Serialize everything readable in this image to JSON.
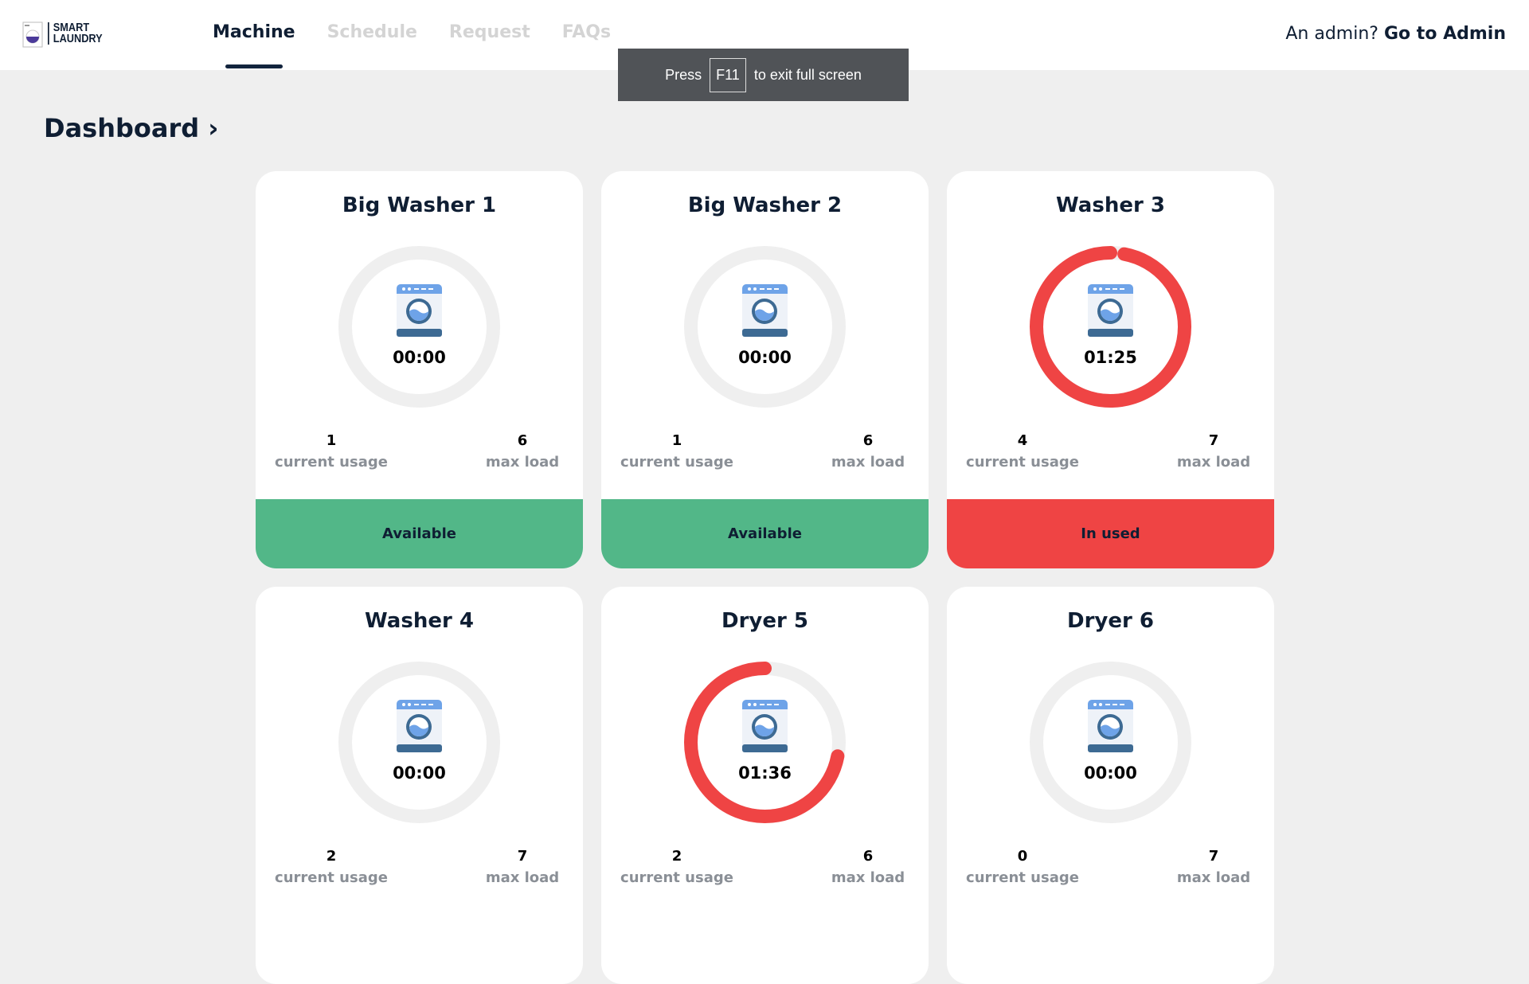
{
  "header": {
    "logo_text": [
      "SMART",
      "LAUNDRY"
    ],
    "nav": [
      "Machine",
      "Schedule",
      "Request",
      "FAQs"
    ],
    "active": "Machine",
    "admin_prompt": "An admin?",
    "admin_link": "Go to Admin"
  },
  "toast": {
    "pre": "Press",
    "key": "F11",
    "post": "to exit full screen"
  },
  "page_title": "Dashboard ›",
  "colors": {
    "available": "#52b788",
    "in_use": "#ef4444",
    "ring_bg": "#efefef"
  },
  "machines": [
    {
      "name": "Big Washer 1",
      "time": "00:00",
      "progress": 0,
      "usage": "1",
      "usage_label": "current usage",
      "max": "6",
      "max_label": "max load",
      "status": "Available",
      "state": "available"
    },
    {
      "name": "Big Washer 2",
      "time": "00:00",
      "progress": 0,
      "usage": "1",
      "usage_label": "current usage",
      "max": "6",
      "max_label": "max load",
      "status": "Available",
      "state": "available"
    },
    {
      "name": "Washer 3",
      "time": "01:25",
      "progress": 0.97,
      "usage": "4",
      "usage_label": "current usage",
      "max": "7",
      "max_label": "max load",
      "status": "In used",
      "state": "in_use"
    },
    {
      "name": "Washer 4",
      "time": "00:00",
      "progress": 0,
      "usage": "2",
      "usage_label": "current usage",
      "max": "7",
      "max_label": "max load"
    },
    {
      "name": "Dryer 5",
      "time": "01:36",
      "progress": 0.72,
      "usage": "2",
      "usage_label": "current usage",
      "max": "6",
      "max_label": "max load"
    },
    {
      "name": "Dryer 6",
      "time": "00:00",
      "progress": 0,
      "usage": "0",
      "usage_label": "current usage",
      "max": "7",
      "max_label": "max load"
    }
  ]
}
